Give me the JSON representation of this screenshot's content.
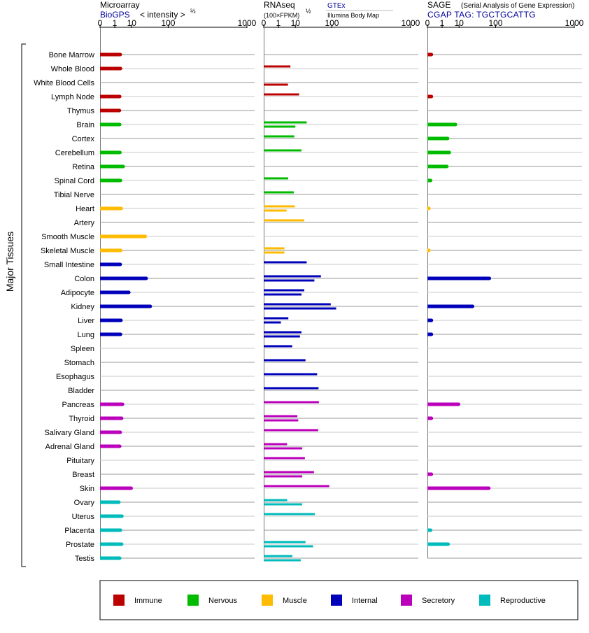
{
  "chart_data": {
    "type": "bar",
    "ylabel": "Major Tissues",
    "scale": "x^(2/3)-like power axis",
    "colors": {
      "Immune": "#bb0000",
      "Nervous": "#00bb00",
      "Muscle": "#ffbb00",
      "Internal": "#0000bb",
      "Secretory": "#bb00bb",
      "Reproductive": "#00bbbb"
    },
    "legend": [
      "Immune",
      "Nervous",
      "Muscle",
      "Internal",
      "Secretory",
      "Reproductive"
    ],
    "legend_position": "bottom",
    "categories": [
      {
        "name": "Bone Marrow",
        "group": "Immune"
      },
      {
        "name": "Whole Blood",
        "group": "Immune"
      },
      {
        "name": "White Blood Cells",
        "group": "Immune"
      },
      {
        "name": "Lymph Node",
        "group": "Immune"
      },
      {
        "name": "Thymus",
        "group": "Immune"
      },
      {
        "name": "Brain",
        "group": "Nervous"
      },
      {
        "name": "Cortex",
        "group": "Nervous"
      },
      {
        "name": "Cerebellum",
        "group": "Nervous"
      },
      {
        "name": "Retina",
        "group": "Nervous"
      },
      {
        "name": "Spinal Cord",
        "group": "Nervous"
      },
      {
        "name": "Tibial Nerve",
        "group": "Nervous"
      },
      {
        "name": "Heart",
        "group": "Muscle"
      },
      {
        "name": "Artery",
        "group": "Muscle"
      },
      {
        "name": "Smooth Muscle",
        "group": "Muscle"
      },
      {
        "name": "Skeletal Muscle",
        "group": "Muscle"
      },
      {
        "name": "Small Intestine",
        "group": "Internal"
      },
      {
        "name": "Colon",
        "group": "Internal"
      },
      {
        "name": "Adipocyte",
        "group": "Internal"
      },
      {
        "name": "Kidney",
        "group": "Internal"
      },
      {
        "name": "Liver",
        "group": "Internal"
      },
      {
        "name": "Lung",
        "group": "Internal"
      },
      {
        "name": "Spleen",
        "group": "Internal"
      },
      {
        "name": "Stomach",
        "group": "Internal"
      },
      {
        "name": "Esophagus",
        "group": "Internal"
      },
      {
        "name": "Bladder",
        "group": "Internal"
      },
      {
        "name": "Pancreas",
        "group": "Secretory"
      },
      {
        "name": "Thyroid",
        "group": "Secretory"
      },
      {
        "name": "Salivary Gland",
        "group": "Secretory"
      },
      {
        "name": "Adrenal Gland",
        "group": "Secretory"
      },
      {
        "name": "Pituitary",
        "group": "Secretory"
      },
      {
        "name": "Breast",
        "group": "Secretory"
      },
      {
        "name": "Skin",
        "group": "Secretory"
      },
      {
        "name": "Ovary",
        "group": "Reproductive"
      },
      {
        "name": "Uterus",
        "group": "Reproductive"
      },
      {
        "name": "Placenta",
        "group": "Reproductive"
      },
      {
        "name": "Prostate",
        "group": "Reproductive"
      },
      {
        "name": "Testis",
        "group": "Reproductive"
      }
    ],
    "panels": [
      {
        "key": "microarray",
        "title": "Microarray",
        "subtitle": "BioGPS",
        "axis_note": "< intensity >",
        "axis_exponent": "⅔",
        "ticks": [
          "0",
          "1",
          "10",
          "100",
          "1000"
        ],
        "xlim": [
          0,
          1000
        ],
        "values": [
          2.6,
          2.7,
          null,
          2.4,
          2.3,
          2.4,
          null,
          2.5,
          3.9,
          2.7,
          null,
          3.0,
          null,
          29,
          2.8,
          2.6,
          31,
          7.5,
          40,
          2.9,
          2.7,
          null,
          null,
          null,
          null,
          3.6,
          3.2,
          2.6,
          2.4,
          null,
          null,
          9.5,
          2.1,
          3.3,
          2.7,
          3.2,
          2.4
        ]
      },
      {
        "key": "rnaseq",
        "title": "RNAseq",
        "subtitle": "(100×FPKM)",
        "axis_exponent": "½",
        "source_a": "GTEx",
        "source_b": "Illumina Body Map",
        "ticks": [
          "0",
          "1",
          "10",
          "100",
          "1000"
        ],
        "xlim": [
          0,
          1000
        ],
        "values_gtex": [
          null,
          6.0,
          null,
          14,
          null,
          25,
          9,
          17,
          null,
          4.6,
          8.6,
          9.5,
          21,
          null,
          2.8,
          25,
          59,
          21,
          95,
          4.7,
          17,
          7.3,
          23,
          48,
          52,
          53,
          12,
          51,
          4.0,
          22,
          40,
          89,
          4.1,
          42,
          null,
          23,
          7.4
        ],
        "values_ibm": [
          null,
          null,
          4.5,
          null,
          null,
          10,
          null,
          null,
          null,
          null,
          null,
          3.8,
          null,
          null,
          2.8,
          null,
          41,
          17,
          120,
          1.6,
          15,
          null,
          null,
          null,
          null,
          null,
          13,
          null,
          18,
          null,
          18,
          null,
          18,
          null,
          null,
          38,
          16
        ]
      },
      {
        "key": "sage",
        "title": "SAGE",
        "subtitle": "(Serial Analysis of Gene Expression)",
        "tag_label": "CGAP TAG: TGCTGCATTG",
        "ticks": [
          "0",
          "1",
          "10",
          "100",
          "1000"
        ],
        "xlim": [
          0,
          1000
        ],
        "values": [
          0.02,
          null,
          null,
          0.02,
          null,
          7.0,
          2.6,
          3.3,
          2.3,
          0.01,
          null,
          0.001,
          null,
          null,
          0.001,
          null,
          75,
          null,
          29,
          0.02,
          0.02,
          null,
          null,
          null,
          null,
          9.5,
          0.02,
          null,
          null,
          null,
          0.02,
          73,
          null,
          null,
          0.01,
          2.8,
          null
        ]
      }
    ]
  }
}
